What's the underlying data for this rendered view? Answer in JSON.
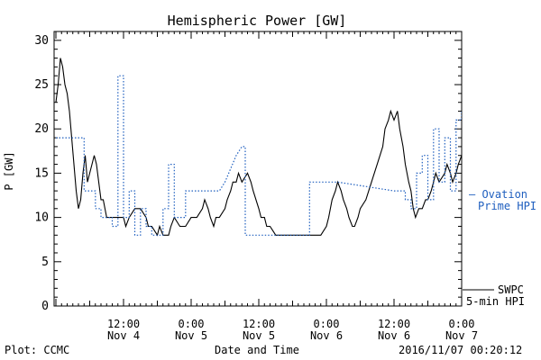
{
  "chart_data": {
    "type": "line",
    "title": "Hemispheric Power [GW]",
    "xlabel": "Date and Time",
    "ylabel": "P [GW]",
    "ylim": [
      0,
      31
    ],
    "yticks": [
      0,
      5,
      10,
      15,
      20,
      25,
      30
    ],
    "xlim": [
      0,
      72
    ],
    "xticks": [
      {
        "x": 12,
        "line1": "12:00",
        "line2": "Nov 4"
      },
      {
        "x": 24,
        "line1": "0:00",
        "line2": "Nov 5"
      },
      {
        "x": 36,
        "line1": "12:00",
        "line2": "Nov 5"
      },
      {
        "x": 48,
        "line1": "0:00",
        "line2": "Nov 6"
      },
      {
        "x": 60,
        "line1": "12:00",
        "line2": "Nov 6"
      },
      {
        "x": 72,
        "line1": "0:00",
        "line2": "Nov 7"
      }
    ],
    "grid": false,
    "legend_position": "right-side, outside plot",
    "series": [
      {
        "name": "SWPC 5-min HPI",
        "label_lines": [
          "SWPC",
          "5-min HPI"
        ],
        "color": "#000000",
        "style": "solid",
        "points": [
          [
            0,
            23
          ],
          [
            0.4,
            25
          ],
          [
            0.8,
            28
          ],
          [
            1.2,
            27
          ],
          [
            1.6,
            25
          ],
          [
            2,
            24
          ],
          [
            2.4,
            22
          ],
          [
            2.8,
            19
          ],
          [
            3.2,
            16
          ],
          [
            3.6,
            13
          ],
          [
            4,
            11
          ],
          [
            4.4,
            12
          ],
          [
            4.8,
            15
          ],
          [
            5.2,
            17
          ],
          [
            5.6,
            14
          ],
          [
            6,
            15
          ],
          [
            6.4,
            16
          ],
          [
            6.8,
            17
          ],
          [
            7.2,
            16
          ],
          [
            7.6,
            14
          ],
          [
            8,
            12
          ],
          [
            8.4,
            12
          ],
          [
            9,
            10
          ],
          [
            10,
            10
          ],
          [
            11,
            10
          ],
          [
            12,
            10
          ],
          [
            12.4,
            9
          ],
          [
            13,
            10
          ],
          [
            14,
            11
          ],
          [
            15,
            11
          ],
          [
            16,
            10
          ],
          [
            16.4,
            9
          ],
          [
            17,
            9
          ],
          [
            18,
            8
          ],
          [
            18.4,
            9
          ],
          [
            19,
            8
          ],
          [
            20,
            8
          ],
          [
            20.4,
            9
          ],
          [
            21,
            10
          ],
          [
            22,
            9
          ],
          [
            23,
            9
          ],
          [
            24,
            10
          ],
          [
            25,
            10
          ],
          [
            26,
            11
          ],
          [
            26.4,
            12
          ],
          [
            27,
            11
          ],
          [
            27.4,
            10
          ],
          [
            28,
            9
          ],
          [
            28.4,
            10
          ],
          [
            29,
            10
          ],
          [
            30,
            11
          ],
          [
            30.4,
            12
          ],
          [
            31,
            13
          ],
          [
            31.4,
            14
          ],
          [
            32,
            14
          ],
          [
            32.4,
            15
          ],
          [
            33,
            14
          ],
          [
            34,
            15
          ],
          [
            34.6,
            14
          ],
          [
            35,
            13
          ],
          [
            36,
            11
          ],
          [
            36.4,
            10
          ],
          [
            37,
            10
          ],
          [
            37.4,
            9
          ],
          [
            38,
            9
          ],
          [
            39,
            8
          ],
          [
            40,
            8
          ],
          [
            41,
            8
          ],
          [
            42,
            8
          ],
          [
            43,
            8
          ],
          [
            44,
            8
          ],
          [
            45,
            8
          ],
          [
            46,
            8
          ],
          [
            47,
            8
          ],
          [
            48,
            9
          ],
          [
            48.4,
            10
          ],
          [
            49,
            12
          ],
          [
            49.6,
            13
          ],
          [
            50,
            14
          ],
          [
            50.6,
            13
          ],
          [
            51,
            12
          ],
          [
            51.6,
            11
          ],
          [
            52,
            10
          ],
          [
            52.6,
            9
          ],
          [
            53,
            9
          ],
          [
            53.6,
            10
          ],
          [
            54,
            11
          ],
          [
            55,
            12
          ],
          [
            56,
            14
          ],
          [
            57,
            16
          ],
          [
            58,
            18
          ],
          [
            58.4,
            20
          ],
          [
            59,
            21
          ],
          [
            59.4,
            22
          ],
          [
            60,
            21
          ],
          [
            60.6,
            22
          ],
          [
            61,
            20
          ],
          [
            61.6,
            18
          ],
          [
            62,
            16
          ],
          [
            62.6,
            14
          ],
          [
            63,
            13
          ],
          [
            63.4,
            11
          ],
          [
            63.8,
            10
          ],
          [
            64.4,
            11
          ],
          [
            65,
            11
          ],
          [
            65.6,
            12
          ],
          [
            66,
            12
          ],
          [
            66.6,
            13
          ],
          [
            67,
            14
          ],
          [
            67.4,
            15
          ],
          [
            68,
            14
          ],
          [
            69,
            15
          ],
          [
            69.4,
            16
          ],
          [
            70,
            15
          ],
          [
            70.4,
            14
          ],
          [
            71,
            15
          ],
          [
            71.4,
            16
          ],
          [
            72,
            17
          ]
        ]
      },
      {
        "name": "Ovation Prime HPI",
        "label_lines": [
          "— Ovation",
          "Prime HPI"
        ],
        "color": "#1f5fbf",
        "style": "dotted",
        "points": [
          [
            0,
            19
          ],
          [
            5,
            19
          ],
          [
            5,
            13
          ],
          [
            7,
            13
          ],
          [
            7,
            11
          ],
          [
            8,
            11
          ],
          [
            8,
            10
          ],
          [
            10,
            10
          ],
          [
            10,
            9
          ],
          [
            11,
            9
          ],
          [
            11,
            26
          ],
          [
            12,
            26
          ],
          [
            12,
            10
          ],
          [
            13,
            10
          ],
          [
            13,
            13
          ],
          [
            14,
            13
          ],
          [
            14,
            8
          ],
          [
            15,
            8
          ],
          [
            15,
            11
          ],
          [
            16,
            11
          ],
          [
            16,
            9
          ],
          [
            17,
            9
          ],
          [
            17,
            8
          ],
          [
            19,
            8
          ],
          [
            19,
            11
          ],
          [
            20,
            11
          ],
          [
            20,
            16
          ],
          [
            21,
            16
          ],
          [
            21,
            10
          ],
          [
            23,
            10
          ],
          [
            23,
            13
          ],
          [
            29,
            13
          ],
          [
            30,
            14
          ],
          [
            32,
            17
          ],
          [
            33,
            18
          ],
          [
            33.6,
            18
          ],
          [
            33.6,
            8
          ],
          [
            45,
            8
          ],
          [
            45,
            14
          ],
          [
            49,
            14
          ],
          [
            50,
            14
          ],
          [
            60,
            13
          ],
          [
            62,
            13
          ],
          [
            62,
            12
          ],
          [
            63,
            12
          ],
          [
            63,
            11
          ],
          [
            64,
            11
          ],
          [
            64,
            15
          ],
          [
            65,
            15
          ],
          [
            65,
            17
          ],
          [
            66,
            17
          ],
          [
            66,
            12
          ],
          [
            67,
            12
          ],
          [
            67,
            20
          ],
          [
            68,
            20
          ],
          [
            68,
            14
          ],
          [
            69,
            14
          ],
          [
            69,
            19
          ],
          [
            70,
            19
          ],
          [
            70,
            13
          ],
          [
            71,
            13
          ],
          [
            71,
            21
          ],
          [
            72,
            21
          ],
          [
            72,
            22
          ],
          [
            73,
            22
          ],
          [
            73,
            15
          ],
          [
            74,
            15
          ]
        ]
      }
    ]
  },
  "footer": {
    "plot_credit": "Plot: CCMC",
    "axis_caption": "Date and Time",
    "timestamp": "2016/11/07 00:20:12"
  }
}
